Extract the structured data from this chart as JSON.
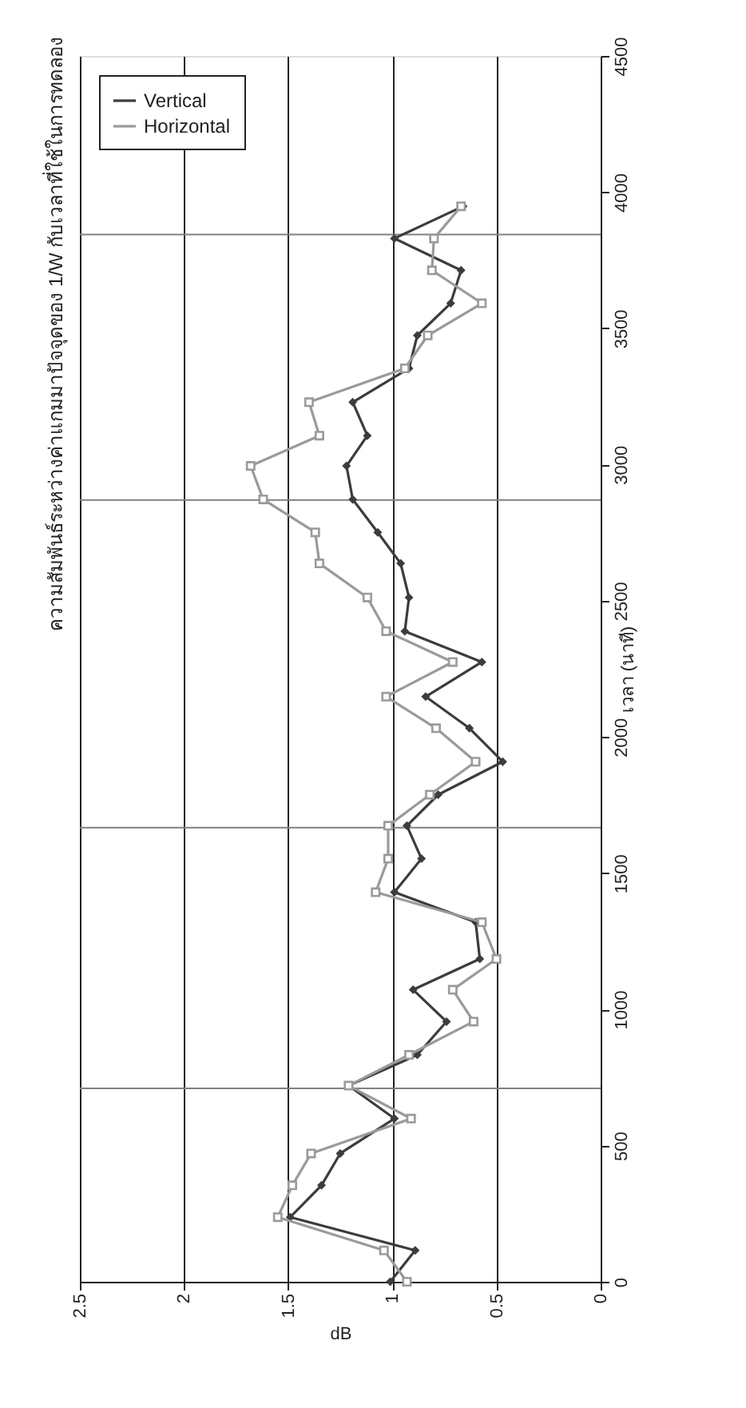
{
  "chart_data": {
    "type": "line",
    "title": "ความสัมพันธ์ระหว่างค่าแกมมาปัจจุดของ 1/W กับเวลาที่ใช้ในการทดลอง",
    "xlabel": "dB",
    "ylabel": "เวลา (นาที)",
    "series": [
      {
        "name": "Vertical",
        "color": "#3c3c3c",
        "marker": "diamond",
        "x": [
          1.01,
          0.89,
          1.49,
          1.34,
          1.25,
          0.99,
          1.21,
          0.88,
          0.74,
          0.9,
          0.58,
          0.6,
          0.99,
          0.86,
          0.93,
          0.78,
          0.47,
          0.63,
          0.84,
          0.57,
          0.94,
          0.92,
          0.96,
          1.07,
          1.19,
          1.22,
          1.12,
          1.19,
          0.92,
          0.88,
          0.72,
          0.67,
          0.99,
          0.66
        ],
        "values": [
          0,
          115,
          237,
          354,
          471,
          599,
          720,
          833,
          955,
          1072,
          1185,
          1320,
          1430,
          1553,
          1674,
          1788,
          1909,
          2032,
          2148,
          2275,
          2388,
          2512,
          2637,
          2751,
          2872,
          2995,
          3106,
          3229,
          3353,
          3474,
          3592,
          3713,
          3830,
          3948
        ]
      },
      {
        "name": "Horizontal",
        "color": "#9a9a9a",
        "marker": "square",
        "x": [
          0.93,
          1.04,
          1.55,
          1.48,
          1.39,
          0.91,
          1.21,
          0.92,
          0.61,
          0.71,
          0.5,
          0.57,
          1.08,
          1.02,
          1.02,
          0.82,
          0.6,
          0.79,
          1.03,
          0.71,
          1.03,
          1.12,
          1.35,
          1.37,
          1.62,
          1.68,
          1.35,
          1.4,
          0.94,
          0.83,
          0.57,
          0.81,
          0.8,
          0.67
        ],
        "values": [
          0,
          115,
          237,
          354,
          471,
          599,
          720,
          833,
          955,
          1072,
          1185,
          1320,
          1430,
          1553,
          1674,
          1788,
          1909,
          2032,
          2148,
          2275,
          2388,
          2512,
          2637,
          2751,
          2872,
          2995,
          3106,
          3229,
          3353,
          3474,
          3592,
          3713,
          3830,
          3948
        ]
      }
    ],
    "xlim": [
      2.5,
      0
    ],
    "xticks": [
      0,
      0.5,
      1,
      1.5,
      2,
      2.5
    ],
    "ylim": [
      0,
      4500
    ],
    "yticks": [
      0,
      500,
      1000,
      1500,
      2000,
      2500,
      3000,
      3500,
      4000,
      4500
    ],
    "grid": "x",
    "legend": "top left",
    "ref_lines": [
      {
        "axis": "y",
        "value": 710,
        "color": "#808080"
      },
      {
        "axis": "y",
        "value": 1667,
        "color": "#808080"
      },
      {
        "axis": "y",
        "value": 2870,
        "color": "#808080"
      },
      {
        "axis": "y",
        "value": 3844,
        "color": "#808080"
      }
    ]
  }
}
